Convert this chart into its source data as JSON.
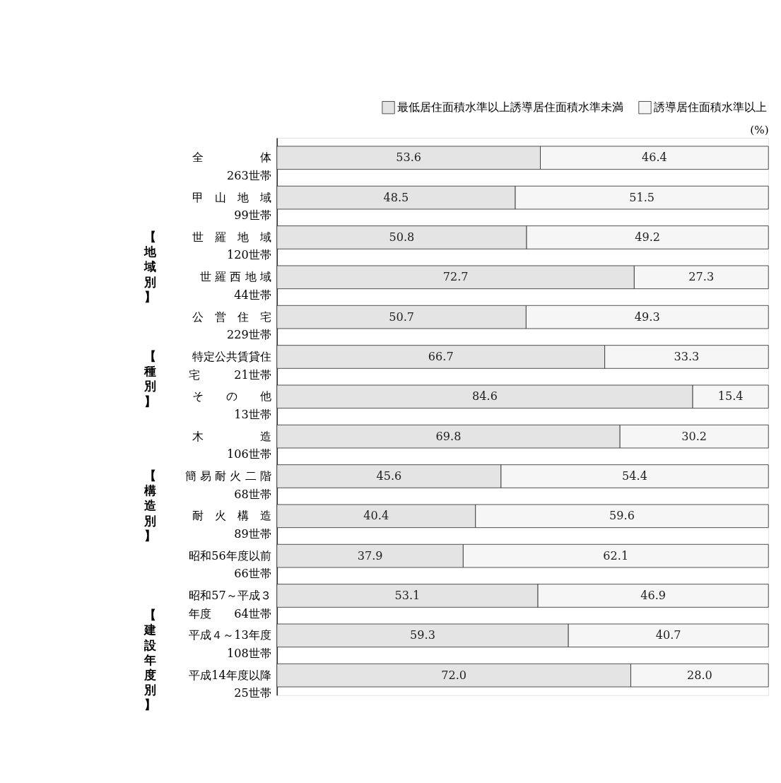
{
  "chart_data": {
    "type": "bar",
    "orientation": "horizontal",
    "stacked": true,
    "tick_labels": "y",
    "legend": "top right",
    "xlabel": "(%)",
    "xlim": [
      0,
      100
    ],
    "categories": [
      "全　　　　　体263世帯",
      "甲　山　地　域99世帯",
      "世　羅　地　域120世帯",
      "世 羅 西 地 域44世帯",
      "公　営　住　宅229世帯",
      "特定公共賃貸住宅　　　21世帯",
      "そ　　の　　他13世帯",
      "木　　　　　造106世帯",
      "簡 易 耐 火 二 階68世帯",
      "耐　火　構　造89世帯",
      "昭和56年度以前66世帯",
      "昭和57～平成３年度　　64世帯",
      "平成４～13年度108世帯",
      "平成14年度以降25世帯"
    ],
    "series": [
      {
        "name": "最低居住面積水準以上誘導居住面積水準未満",
        "color": "#e4e4e4",
        "values": [
          53.6,
          48.5,
          50.8,
          72.7,
          50.7,
          66.7,
          84.6,
          69.8,
          45.6,
          40.4,
          37.9,
          53.1,
          59.3,
          72.0
        ],
        "value_labels": [
          "53.6",
          "48.5",
          "50.8",
          "72.7",
          "50.7",
          "66.7",
          "84.6",
          "69.8",
          "45.6",
          "40.4",
          "37.9",
          "53.1",
          "59.3",
          "72.0"
        ]
      },
      {
        "name": "誘導居住面積水準以上",
        "color": "#f6f6f6",
        "values": [
          46.4,
          51.5,
          49.2,
          27.3,
          49.3,
          33.3,
          15.4,
          30.2,
          54.4,
          59.6,
          62.1,
          46.9,
          40.7,
          28.0
        ],
        "value_labels": [
          "46.4",
          "51.5",
          "49.2",
          "27.3",
          "49.3",
          "33.3",
          "15.4",
          "30.2",
          "54.4",
          "59.6",
          "62.1",
          "46.9",
          "40.7",
          "28.0"
        ]
      }
    ],
    "annotations": [
      "【地域別】",
      "【種別】",
      "【構造別】",
      "【建設年度別】"
    ]
  }
}
